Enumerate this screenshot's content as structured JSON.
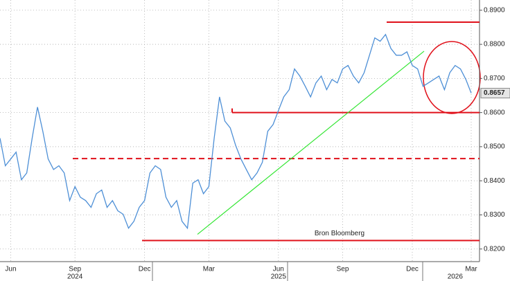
{
  "chart_data": {
    "type": "line",
    "categories": [
      null,
      null,
      "Jun",
      null,
      null,
      null,
      null,
      null,
      null,
      null,
      null,
      null,
      null,
      null,
      "Sep",
      null,
      null,
      null,
      null,
      null,
      null,
      null,
      null,
      null,
      null,
      null,
      null,
      "Dec",
      null,
      null,
      null,
      null,
      null,
      null,
      null,
      null,
      null,
      null,
      null,
      "Mar",
      null,
      null,
      null,
      null,
      null,
      null,
      null,
      null,
      null,
      null,
      null,
      null,
      "Jun",
      null,
      null,
      null,
      null,
      null,
      null,
      null,
      null,
      null,
      null,
      null,
      "Sep",
      null,
      null,
      null,
      null,
      null,
      null,
      null,
      null,
      null,
      null,
      null,
      null,
      "Dec",
      null,
      null,
      null,
      null,
      null,
      null,
      null,
      null,
      null,
      null,
      "Mar"
    ],
    "year_labels": [
      null,
      null,
      null,
      null,
      null,
      null,
      null,
      null,
      null,
      null,
      null,
      null,
      null,
      null,
      "2024",
      null,
      null,
      null,
      null,
      null,
      null,
      null,
      null,
      null,
      null,
      null,
      null,
      null,
      null,
      null,
      null,
      null,
      null,
      null,
      null,
      null,
      null,
      null,
      null,
      null,
      null,
      null,
      null,
      null,
      null,
      null,
      null,
      null,
      null,
      null,
      null,
      null,
      "2025",
      null,
      null,
      null,
      null,
      null,
      null,
      null,
      null,
      null,
      null,
      null,
      null,
      null,
      null,
      null,
      null,
      null,
      null,
      null,
      null,
      null,
      null,
      null,
      null,
      null,
      null,
      null,
      null,
      null,
      null,
      null,
      null,
      "2026",
      null,
      null,
      null
    ],
    "series": [
      {
        "color": "#4d8fd6",
        "values": [
          0.8525,
          0.8444,
          0.8464,
          0.8484,
          0.8403,
          0.8423,
          0.8525,
          0.8616,
          0.8545,
          0.8464,
          0.8433,
          0.8444,
          0.8423,
          0.8342,
          0.8383,
          0.8352,
          0.8342,
          0.8322,
          0.8362,
          0.8373,
          0.8322,
          0.8342,
          0.8312,
          0.8302,
          0.8261,
          0.8281,
          0.8322,
          0.8342,
          0.8423,
          0.8444,
          0.8433,
          0.8352,
          0.8322,
          0.8342,
          0.8281,
          0.8261,
          0.8393,
          0.8403,
          0.8362,
          0.8383,
          0.8525,
          0.8646,
          0.8575,
          0.8555,
          0.8504,
          0.8464,
          0.8433,
          0.8403,
          0.8423,
          0.8454,
          0.8545,
          0.8565,
          0.8606,
          0.8646,
          0.8667,
          0.8728,
          0.8707,
          0.8677,
          0.8646,
          0.8687,
          0.8707,
          0.8667,
          0.8697,
          0.8687,
          0.8728,
          0.8738,
          0.8707,
          0.8687,
          0.8717,
          0.8768,
          0.8819,
          0.8809,
          0.8829,
          0.8788,
          0.8768,
          0.8768,
          0.8778,
          0.8738,
          0.8728,
          0.8677,
          0.8687,
          0.8697,
          0.8707,
          0.8667,
          0.8717,
          0.8738,
          0.8728,
          0.8697,
          0.8657
        ]
      }
    ],
    "last_value_label": "0.8657",
    "ylim": [
      0.8163,
      0.893
    ],
    "yticks": [
      {
        "value": 0.82,
        "label": "0.8200"
      },
      {
        "value": 0.83,
        "label": "0.8300"
      },
      {
        "value": 0.84,
        "label": "0.8400"
      },
      {
        "value": 0.85,
        "label": "0.8500"
      },
      {
        "value": 0.86,
        "label": "0.8600"
      },
      {
        "value": 0.87,
        "label": "0.8700"
      },
      {
        "value": 0.88,
        "label": "0.8800"
      },
      {
        "value": 0.89,
        "label": "0.8900"
      }
    ],
    "grid": true,
    "reference_lines": [
      {
        "value": 0.8865,
        "color": "#e0101a",
        "style": "solid"
      },
      {
        "value": 0.86,
        "color": "#e0101a",
        "style": "solid"
      },
      {
        "value": 0.8465,
        "color": "#e0101a",
        "style": "dashed"
      },
      {
        "value": 0.8225,
        "color": "#e0101a",
        "style": "solid"
      }
    ],
    "trendline": {
      "color": "#33e633",
      "values": [
        0.8243,
        0.878
      ]
    },
    "annotation": "Bron Bloomberg"
  }
}
